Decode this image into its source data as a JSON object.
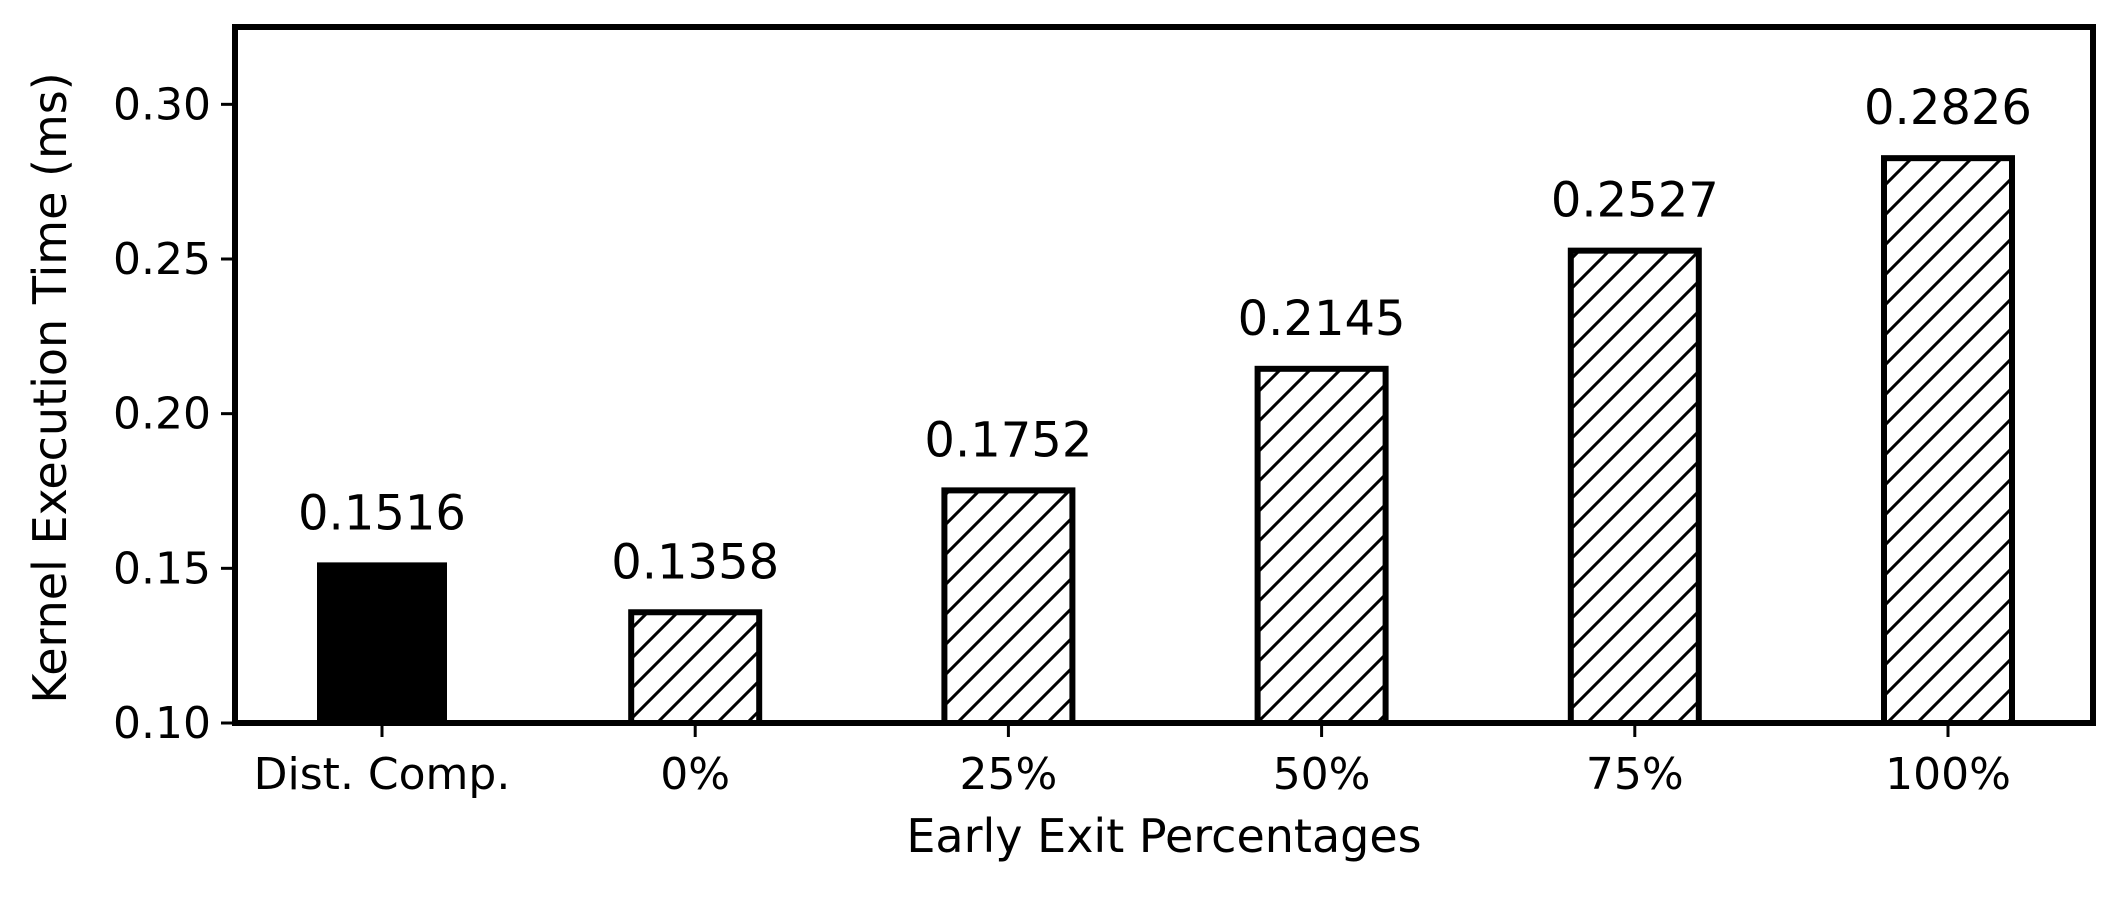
{
  "chart_data": {
    "type": "bar",
    "categories": [
      "Dist. Comp.",
      "0%",
      "25%",
      "50%",
      "75%",
      "100%"
    ],
    "values": [
      0.1516,
      0.1358,
      0.1752,
      0.2145,
      0.2527,
      0.2826
    ],
    "value_labels": [
      "0.1516",
      "0.1358",
      "0.1752",
      "0.2145",
      "0.2527",
      "0.2826"
    ],
    "bar_styles": [
      "solid",
      "hatched",
      "hatched",
      "hatched",
      "hatched",
      "hatched"
    ],
    "title": "",
    "xlabel": "Early Exit Percentages",
    "ylabel": "Kernel Execution Time (ms)",
    "ylim": [
      0.1,
      0.325
    ],
    "yticks": [
      0.1,
      0.15,
      0.2,
      0.25,
      0.3
    ],
    "ytick_labels": [
      "0.10",
      "0.15",
      "0.20",
      "0.25",
      "0.30"
    ],
    "grid": false,
    "legend": "none",
    "colors": {
      "bar_edge": "#000000",
      "solid_fill": "#000000",
      "hatch_fill": "#ffffff",
      "hatch_line": "#000000"
    }
  }
}
